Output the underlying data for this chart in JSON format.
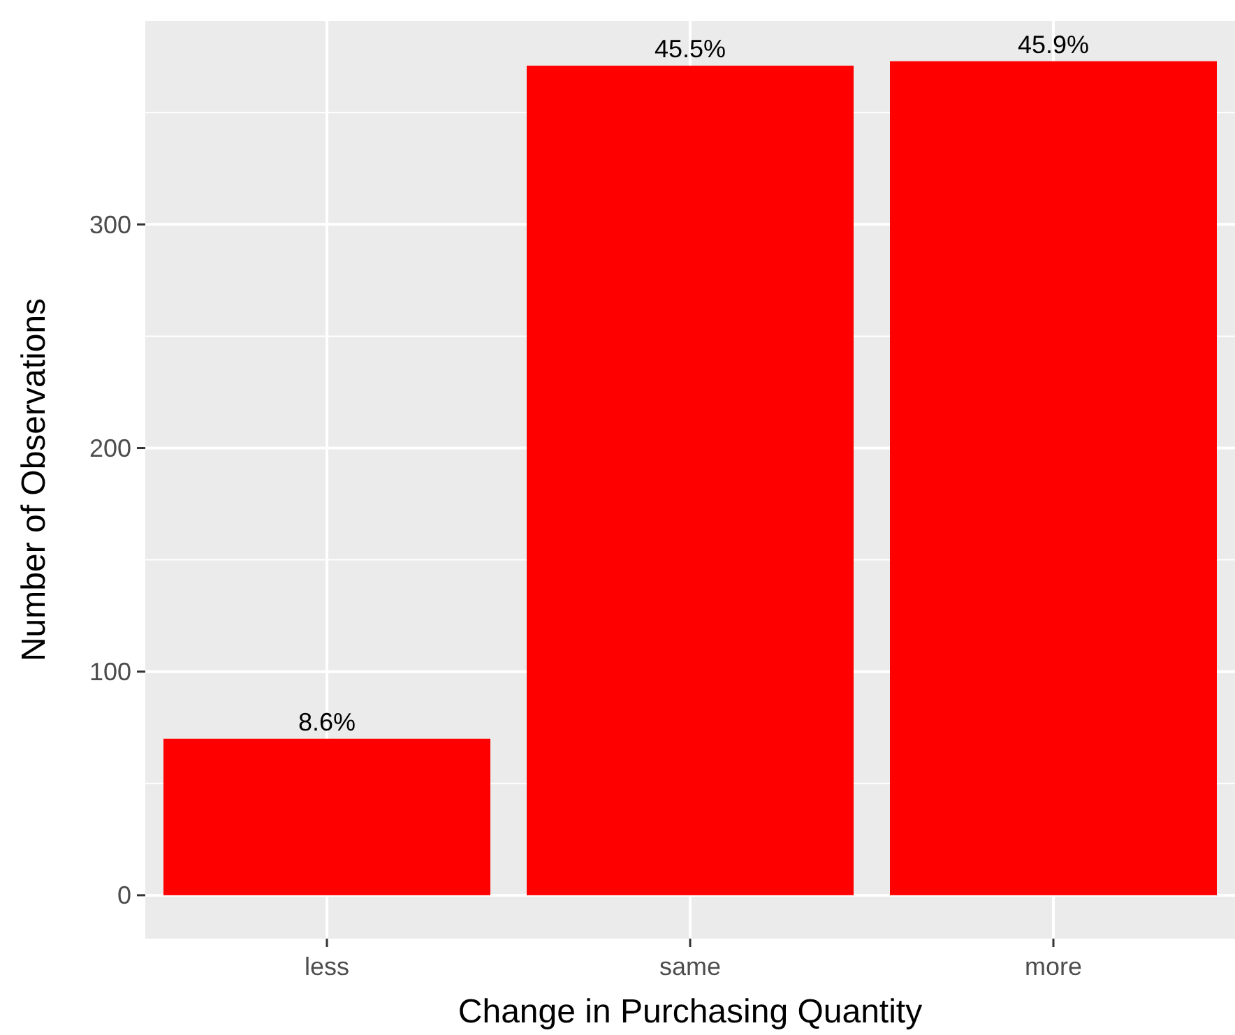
{
  "chart_data": {
    "type": "bar",
    "xlabel": "Change in Purchasing Quantity",
    "ylabel": "Number of Observations",
    "categories": [
      "less",
      "same",
      "more"
    ],
    "values": [
      70,
      371,
      373
    ],
    "annotations": [
      {
        "text": "8.6%",
        "x": "less",
        "y": 70
      },
      {
        "text": "45.5%",
        "x": "same",
        "y": 371
      },
      {
        "text": "45.9%",
        "x": "more",
        "y": 373
      }
    ],
    "color": "#ff0000",
    "ylim": [
      -19.4,
      391
    ],
    "yticks": [
      0,
      100,
      200,
      300
    ],
    "grid": true
  }
}
